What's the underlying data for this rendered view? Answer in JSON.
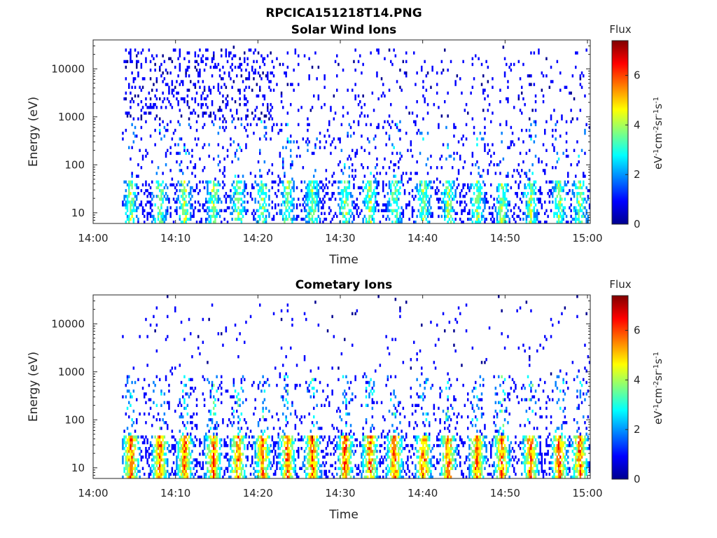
{
  "figure_title": "RPCICA151218T14.PNG",
  "colors": {
    "colormap": [
      "#00008f",
      "#0000ff",
      "#0080ff",
      "#00ffff",
      "#80ff80",
      "#ffff00",
      "#ff8000",
      "#ff0000",
      "#800000"
    ],
    "axis": "#262626",
    "background": "#ffffff"
  },
  "chart_data": [
    {
      "type": "heatmap",
      "title": "Solar Wind Ions",
      "xlabel": "Time",
      "ylabel": "Energy (eV)",
      "x_range": [
        "14:00",
        "15:00"
      ],
      "x_ticks": [
        "14:00",
        "14:10",
        "14:20",
        "14:30",
        "14:40",
        "14:50",
        "15:00"
      ],
      "y_scale": "log",
      "y_range": [
        6,
        40000
      ],
      "y_ticks": [
        "10",
        "100",
        "1000",
        "10000"
      ],
      "colorbar": {
        "title": "Flux",
        "label": "eV-1cm-2sr-1s-1",
        "range": [
          0,
          7.4
        ],
        "ticks": [
          "0",
          "2",
          "4",
          "6"
        ]
      },
      "data_start": "14:03",
      "description_bands": "sparse low-flux (blue) counts over 10-30000 eV; higher flux (cyan-yellow) bursts at 10-40 eV"
    },
    {
      "type": "heatmap",
      "title": "Cometary Ions",
      "xlabel": "Time",
      "ylabel": "Energy (eV)",
      "x_range": [
        "14:00",
        "15:00"
      ],
      "x_ticks": [
        "14:00",
        "14:10",
        "14:20",
        "14:30",
        "14:40",
        "14:50",
        "15:00"
      ],
      "y_scale": "log",
      "y_range": [
        6,
        40000
      ],
      "y_ticks": [
        "10",
        "100",
        "1000",
        "10000"
      ],
      "colorbar": {
        "title": "Flux",
        "label": "eV-1cm-2sr-1s-1",
        "range": [
          0,
          7.4
        ],
        "ticks": [
          "0",
          "2",
          "4",
          "6"
        ]
      },
      "data_start": "14:03",
      "burst_minutes": [
        4.5,
        8,
        11,
        14.5,
        17.5,
        20.5,
        23.5,
        26.5,
        30.5,
        33.5,
        36.5,
        40,
        43,
        46.5,
        49.5,
        53,
        56.5,
        59
      ],
      "description_bands": "strong high-flux (orange-red) bursts at 10-40 eV, sparse low-flux counts up to 10000 eV"
    }
  ]
}
